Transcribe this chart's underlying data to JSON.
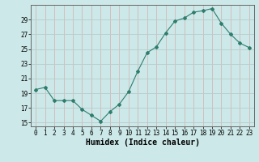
{
  "x": [
    0,
    1,
    2,
    3,
    4,
    5,
    6,
    7,
    8,
    9,
    10,
    11,
    12,
    13,
    14,
    15,
    16,
    17,
    18,
    19,
    20,
    21,
    22,
    23
  ],
  "y": [
    19.5,
    19.8,
    18.0,
    18.0,
    18.0,
    16.8,
    16.0,
    15.2,
    16.5,
    17.5,
    19.2,
    22.0,
    24.5,
    25.3,
    27.2,
    28.8,
    29.2,
    30.0,
    30.2,
    30.5,
    28.5,
    27.0,
    25.8,
    25.2
  ],
  "line_color": "#2e7d6e",
  "marker": "D",
  "marker_size": 2.0,
  "bg_color": "#cce8e8",
  "grid_color_x": "#d4b8b8",
  "grid_color_y": "#b8cccc",
  "xlabel": "Humidex (Indice chaleur)",
  "xlim": [
    -0.5,
    23.5
  ],
  "ylim": [
    14.5,
    31.0
  ],
  "yticks": [
    15,
    17,
    19,
    21,
    23,
    25,
    27,
    29
  ],
  "xticks": [
    0,
    1,
    2,
    3,
    4,
    5,
    6,
    7,
    8,
    9,
    10,
    11,
    12,
    13,
    14,
    15,
    16,
    17,
    18,
    19,
    20,
    21,
    22,
    23
  ],
  "tick_fontsize": 5.5,
  "xlabel_fontsize": 7.0
}
